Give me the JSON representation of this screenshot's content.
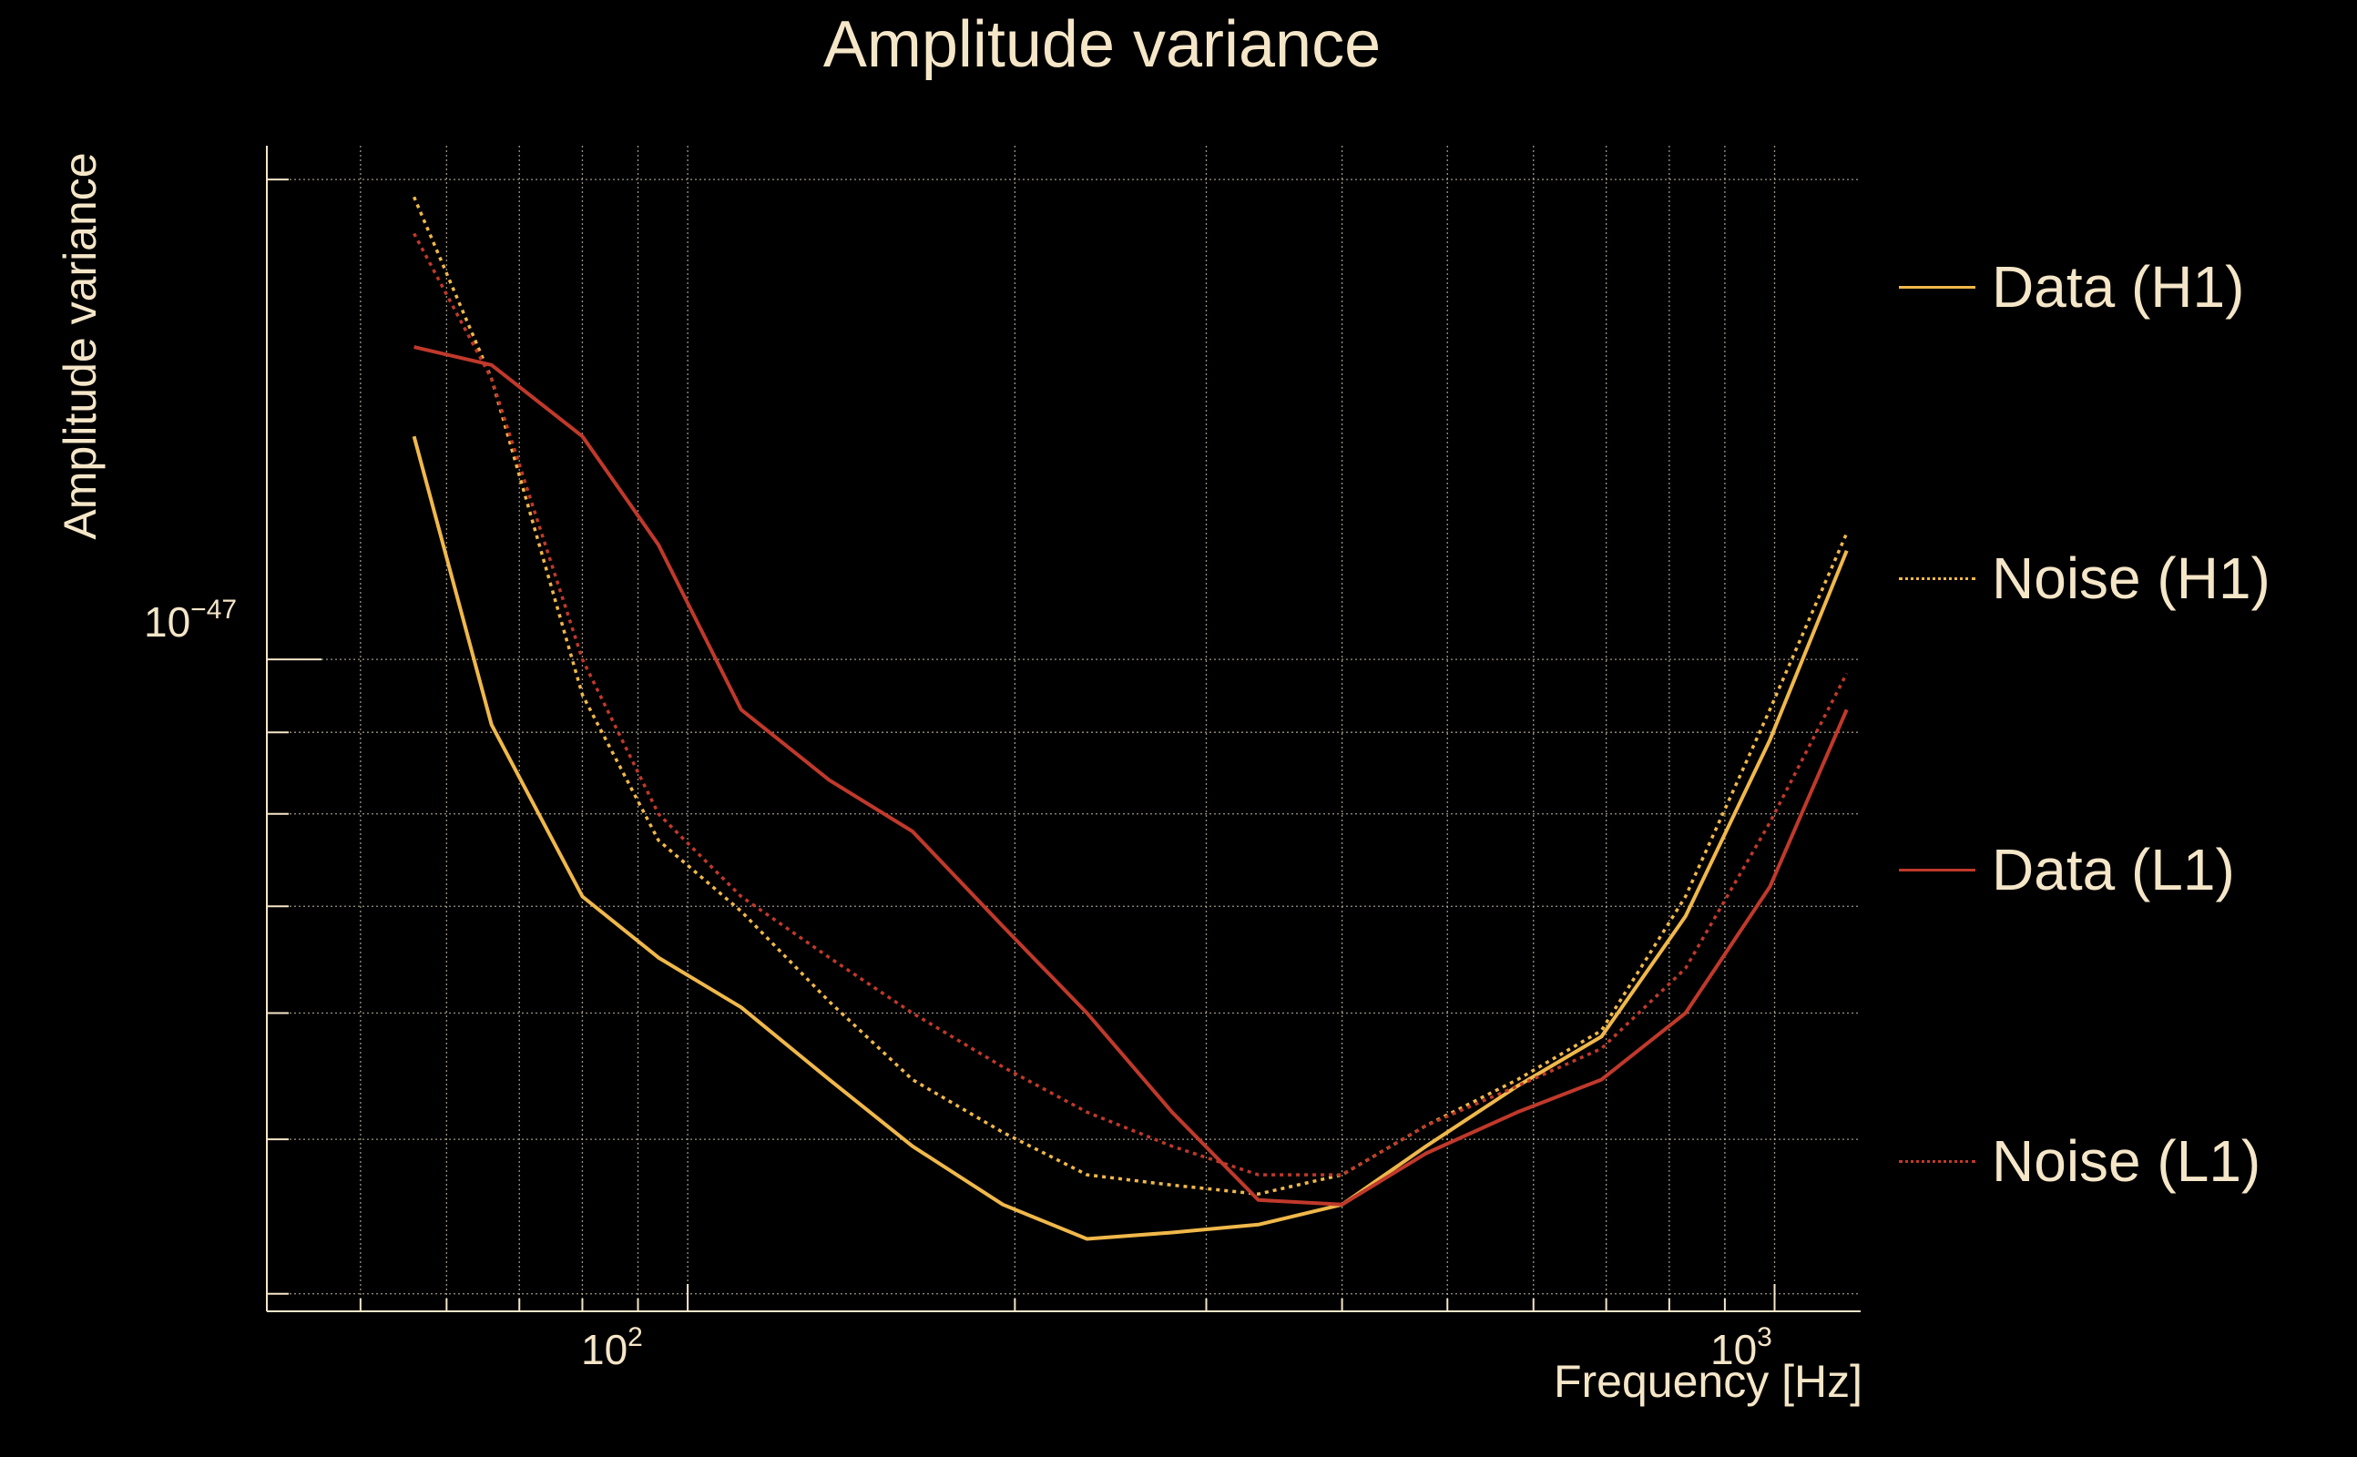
{
  "chart_data": {
    "type": "line",
    "title": "Amplitude variance",
    "xlabel": "Frequency [Hz]",
    "ylabel": "Amplitude variance",
    "xscale": "log",
    "yscale": "log",
    "xlim": [
      41,
      1200
    ],
    "ylim": [
      3.9e-48,
      2.1e-47
    ],
    "grid": true,
    "legend_position": "right",
    "x_tick_labels": [
      {
        "base": "10",
        "exp": "2",
        "value": 100
      },
      {
        "base": "10",
        "exp": "3",
        "value": 1000
      }
    ],
    "y_tick_labels": [
      {
        "base": "10",
        "exp": "−47",
        "value": 1e-47
      }
    ],
    "series": [
      {
        "name": "Data (H1)",
        "color": "#f0b84a",
        "dash": "solid",
        "x": [
          56,
          66,
          80,
          94,
          112,
          135,
          161,
          195,
          233,
          279,
          335,
          400,
          478,
          580,
          693,
          828,
          990,
          1165
        ],
        "y": [
          1.38e-47,
          9.1e-48,
          7.1e-48,
          6.5e-48,
          6.05e-48,
          5.45e-48,
          4.95e-48,
          4.55e-48,
          4.33e-48,
          4.37e-48,
          4.42e-48,
          4.55e-48,
          4.95e-48,
          5.4e-48,
          5.8e-48,
          6.9e-48,
          8.9e-48,
          1.17e-47
        ]
      },
      {
        "name": "Noise (H1)",
        "color": "#f0b84a",
        "dash": "dotted",
        "x": [
          56,
          66,
          80,
          94,
          112,
          135,
          161,
          195,
          233,
          279,
          335,
          400,
          478,
          580,
          693,
          828,
          990,
          1165
        ],
        "y": [
          1.95e-47,
          1.5e-47,
          9.5e-48,
          7.7e-48,
          6.95e-48,
          6.1e-48,
          5.45e-48,
          5.05e-48,
          4.75e-48,
          4.68e-48,
          4.62e-48,
          4.75e-48,
          5.1e-48,
          5.45e-48,
          5.85e-48,
          7.1e-48,
          9.3e-48,
          1.2e-47
        ]
      },
      {
        "name": "Data (L1)",
        "color": "#c0392b",
        "dash": "solid",
        "x": [
          56,
          66,
          80,
          94,
          112,
          135,
          161,
          195,
          233,
          279,
          335,
          400,
          478,
          580,
          693,
          828,
          990,
          1165
        ],
        "y": [
          1.57e-47,
          1.53e-47,
          1.38e-47,
          1.18e-47,
          9.3e-48,
          8.4e-48,
          7.8e-48,
          6.8e-48,
          6e-48,
          5.2e-48,
          4.58e-48,
          4.55e-48,
          4.9e-48,
          5.2e-48,
          5.45e-48,
          6e-48,
          7.2e-48,
          9.3e-48
        ]
      },
      {
        "name": "Noise (L1)",
        "color": "#c0392b",
        "dash": "dotted",
        "x": [
          56,
          66,
          80,
          94,
          112,
          135,
          161,
          195,
          233,
          279,
          335,
          400,
          478,
          580,
          693,
          828,
          990,
          1165
        ],
        "y": [
          1.85e-47,
          1.5e-47,
          1e-47,
          8e-48,
          7.1e-48,
          6.5e-48,
          6e-48,
          5.55e-48,
          5.2e-48,
          4.95e-48,
          4.75e-48,
          4.75e-48,
          5.1e-48,
          5.4e-48,
          5.7e-48,
          6.4e-48,
          7.9e-48,
          9.8e-48
        ]
      }
    ]
  }
}
